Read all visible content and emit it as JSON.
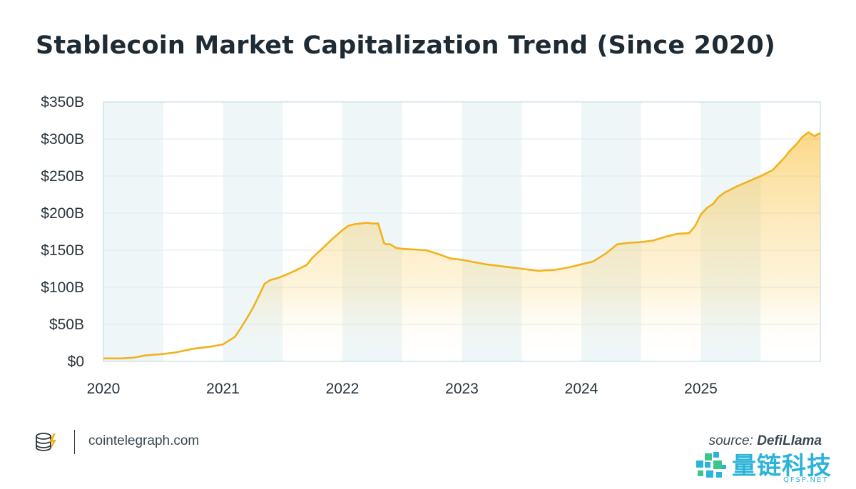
{
  "title": "Stablecoin Market Capitalization Trend (Since 2020)",
  "footer": {
    "site": "cointelegraph.com",
    "source_label": "source:",
    "source_name": "DefiLlama",
    "logo_icon": "cointelegraph-logo-icon"
  },
  "watermark": {
    "text": "量链科技",
    "sub": "QFSP.NET",
    "icon": "qr-code-logo-icon"
  },
  "colors": {
    "line": "#f2b21c",
    "band": "#eef6f8",
    "grid": "#dde8ee",
    "axis": "#c6dbe5"
  },
  "chart_data": {
    "type": "area",
    "title": "Stablecoin Market Capitalization Trend (Since 2020)",
    "xlabel": "",
    "ylabel": "",
    "ylim": [
      0,
      350
    ],
    "xlim": [
      2020.0,
      2026.0
    ],
    "y_unit": "billion USD",
    "yticks": [
      0,
      50,
      100,
      150,
      200,
      250,
      300,
      350
    ],
    "ytick_labels": [
      "$0",
      "$50B",
      "$100B",
      "$150B",
      "$200B",
      "$250B",
      "$300B",
      "$350B"
    ],
    "xticks": [
      2020,
      2021,
      2022,
      2023,
      2024,
      2025
    ],
    "xtick_labels": [
      "2020",
      "2021",
      "2022",
      "2023",
      "2024",
      "2025"
    ],
    "shaded_bands": [
      [
        2020.0,
        2020.5
      ],
      [
        2021.0,
        2021.5
      ],
      [
        2022.0,
        2022.5
      ],
      [
        2023.0,
        2023.5
      ],
      [
        2024.0,
        2024.5
      ],
      [
        2025.0,
        2025.5
      ]
    ],
    "grid": true,
    "legend": "none",
    "series": [
      {
        "x": [
          2020.0,
          2020.15,
          2020.25,
          2020.35,
          2020.5,
          2020.6,
          2020.75,
          2020.9,
          2021.0,
          2021.05,
          2021.1,
          2021.15,
          2021.2,
          2021.25,
          2021.3,
          2021.35,
          2021.4,
          2021.45,
          2021.5,
          2021.6,
          2021.7,
          2021.75,
          2021.85,
          2021.9,
          2021.95,
          2022.0,
          2022.05,
          2022.1,
          2022.15,
          2022.2,
          2022.25,
          2022.3,
          2022.35,
          2022.37,
          2022.4,
          2022.45,
          2022.5,
          2022.6,
          2022.7,
          2022.8,
          2022.9,
          2023.0,
          2023.1,
          2023.2,
          2023.3,
          2023.4,
          2023.5,
          2023.6,
          2023.65,
          2023.7,
          2023.75,
          2023.8,
          2023.9,
          2024.0,
          2024.1,
          2024.2,
          2024.3,
          2024.4,
          2024.5,
          2024.6,
          2024.7,
          2024.8,
          2024.9,
          2024.95,
          2025.0,
          2025.05,
          2025.1,
          2025.15,
          2025.2,
          2025.3,
          2025.4,
          2025.5,
          2025.6,
          2025.7,
          2025.75,
          2025.8,
          2025.85,
          2025.9,
          2025.95,
          2026.0
        ],
        "values": [
          4,
          4,
          5,
          8,
          10,
          12,
          17,
          20,
          23,
          28,
          33,
          45,
          58,
          72,
          88,
          105,
          110,
          112,
          115,
          122,
          130,
          140,
          155,
          163,
          170,
          177,
          183,
          185,
          186,
          187,
          186,
          186,
          159,
          158,
          158,
          153,
          152,
          151,
          150,
          145,
          139,
          137,
          134,
          131,
          129,
          127,
          125,
          123,
          122,
          123,
          123,
          124,
          127,
          131,
          135,
          145,
          158,
          160,
          161,
          163,
          168,
          172,
          173,
          182,
          198,
          207,
          212,
          222,
          228,
          236,
          243,
          250,
          258,
          275,
          285,
          293,
          303,
          309,
          304,
          308
        ]
      }
    ]
  }
}
